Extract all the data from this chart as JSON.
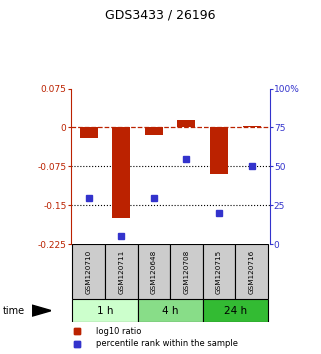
{
  "title": "GDS3433 / 26196",
  "samples": [
    "GSM120710",
    "GSM120711",
    "GSM120648",
    "GSM120708",
    "GSM120715",
    "GSM120716"
  ],
  "log10_ratio": [
    -0.02,
    -0.175,
    -0.015,
    0.015,
    -0.09,
    0.002
  ],
  "percentile_rank": [
    30,
    5,
    30,
    55,
    20,
    50
  ],
  "ylim_left": [
    -0.225,
    0.075
  ],
  "ylim_right": [
    0,
    100
  ],
  "yticks_left": [
    0.075,
    0,
    -0.075,
    -0.15,
    -0.225
  ],
  "yticks_right": [
    100,
    75,
    50,
    25,
    0
  ],
  "ytick_labels_left": [
    "0.075",
    "0",
    "-0.075",
    "-0.15",
    "-0.225"
  ],
  "ytick_labels_right": [
    "100%",
    "75",
    "50",
    "25",
    "0"
  ],
  "hline_y": 0,
  "dotted_lines": [
    -0.075,
    -0.15
  ],
  "bar_color": "#bb2200",
  "dot_color": "#3333cc",
  "groups": [
    {
      "label": "1 h",
      "samples": [
        0,
        1
      ],
      "color": "#ccffcc"
    },
    {
      "label": "4 h",
      "samples": [
        2,
        3
      ],
      "color": "#88dd88"
    },
    {
      "label": "24 h",
      "samples": [
        4,
        5
      ],
      "color": "#33bb33"
    }
  ],
  "legend_items": [
    {
      "label": "log10 ratio",
      "color": "#bb2200"
    },
    {
      "label": "percentile rank within the sample",
      "color": "#3333cc"
    }
  ],
  "bar_width": 0.55,
  "sample_box_color": "#cccccc"
}
